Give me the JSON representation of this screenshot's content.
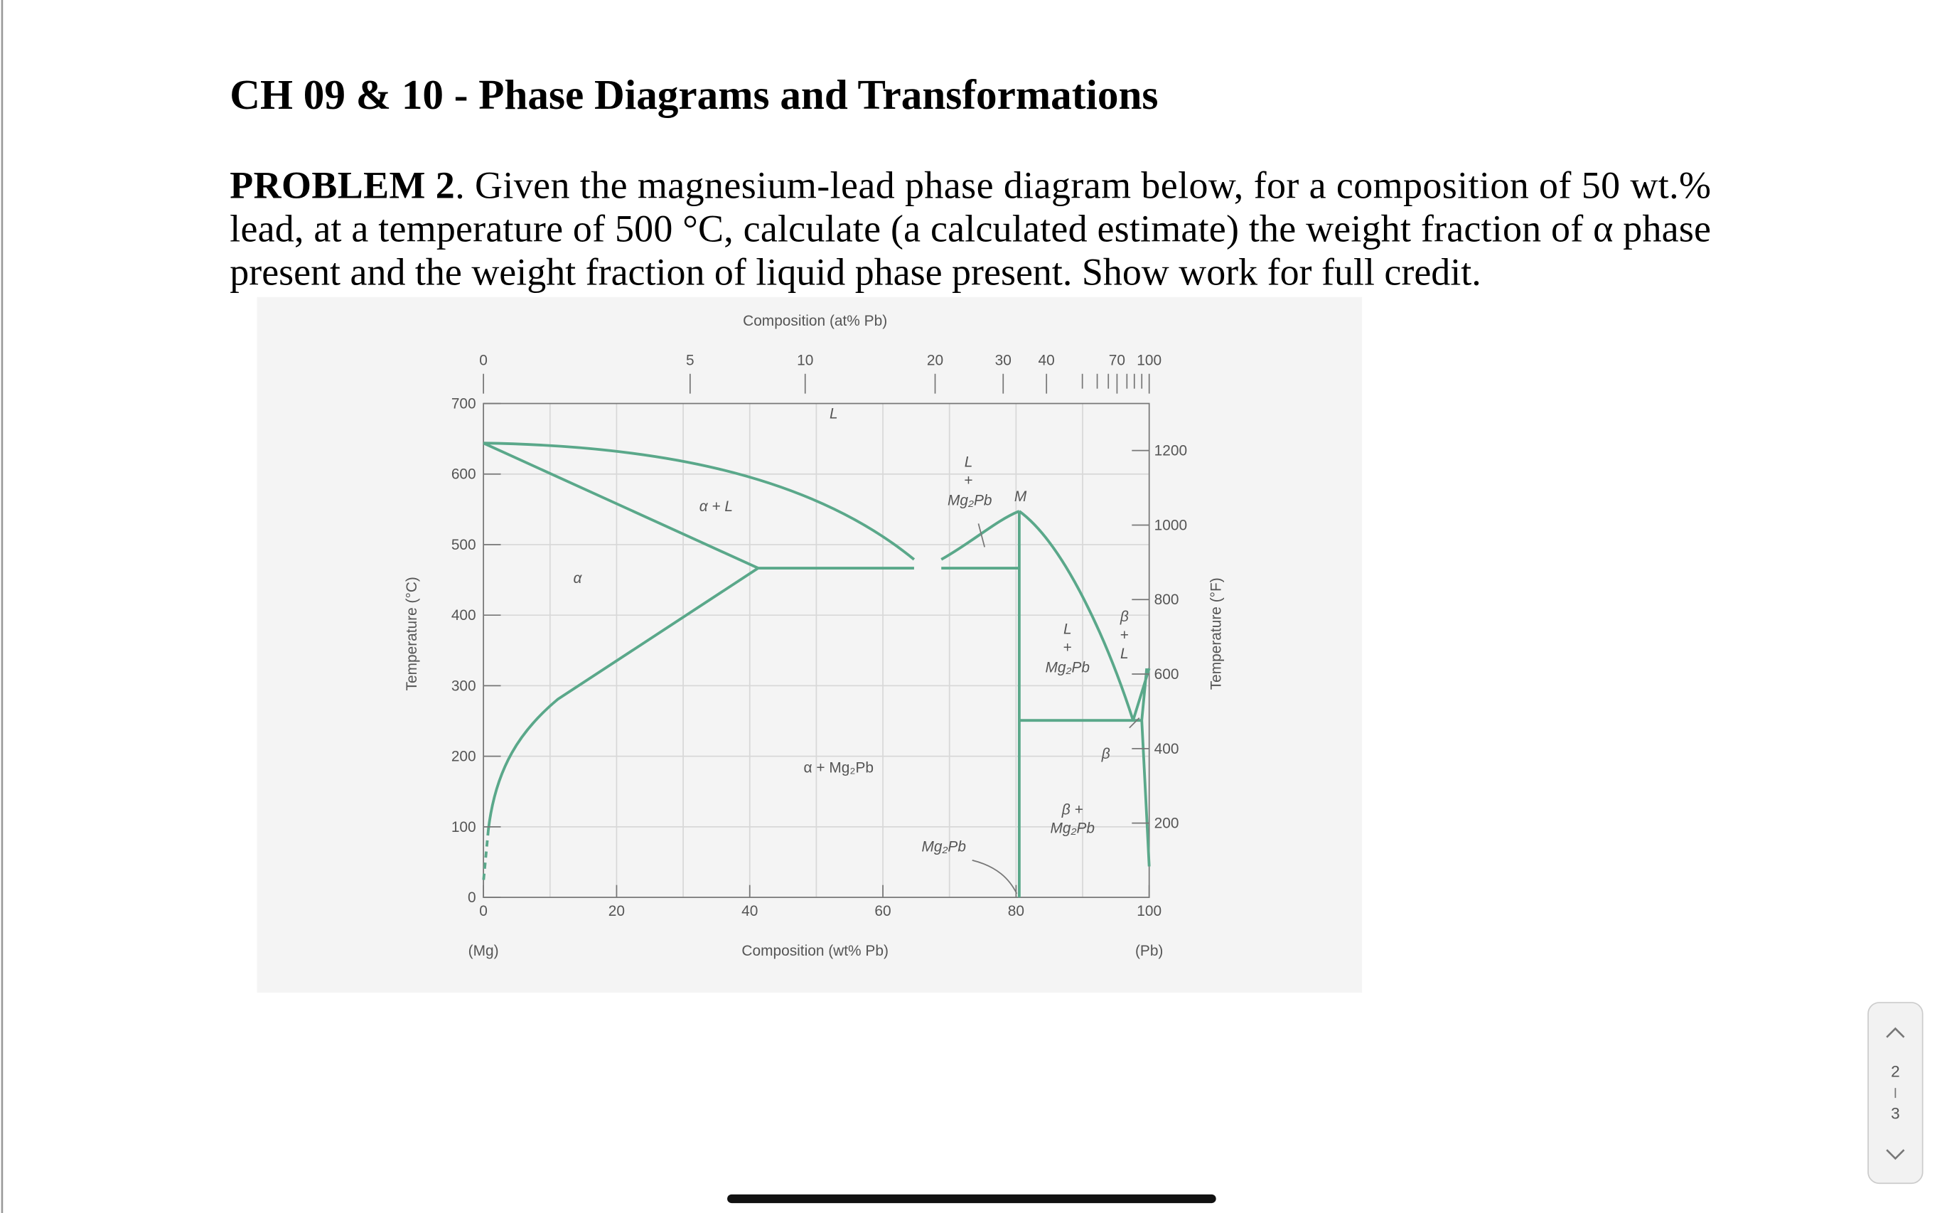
{
  "header": {
    "title": "CH 09 & 10 - Phase Diagrams and Transformations"
  },
  "problem": {
    "label": "PROBLEM 2",
    "lines": [
      ". Given the magnesium-lead phase diagram below, for a composition of 50 wt.%",
      "lead, at a temperature of 500 °C, calculate (a calculated estimate) the weight fraction of α phase",
      "present and the weight fraction of liquid phase present. Show work for full credit."
    ]
  },
  "figure": {
    "top_axis_title": "Composition (at% Pb)",
    "top_ticks": [
      "0",
      "5",
      "10",
      "20",
      "30",
      "40",
      "70",
      "100"
    ],
    "bottom_axis_title": "Composition (wt% Pb)",
    "bottom_ticks": [
      "0",
      "20",
      "40",
      "60",
      "80",
      "100"
    ],
    "left_axis_title": "Temperature (°C)",
    "left_ticks": [
      "0",
      "100",
      "200",
      "300",
      "400",
      "500",
      "600",
      "700"
    ],
    "right_axis_title": "Temperature (°F)",
    "right_ticks": [
      "200",
      "400",
      "600",
      "800",
      "1000",
      "1200"
    ],
    "end_labels": [
      "(Mg)",
      "(Pb)"
    ],
    "region_labels": [
      "L",
      "L",
      "+",
      "Mg₂Pb",
      "M",
      "α + L",
      "α",
      "L",
      "+",
      "Mg₂Pb",
      "β",
      "+",
      "L",
      "β",
      "α + Mg₂Pb",
      "β +",
      "Mg₂Pb",
      "Mg₂Pb"
    ]
  },
  "page_indicator": {
    "current": "2",
    "total": "3"
  }
}
